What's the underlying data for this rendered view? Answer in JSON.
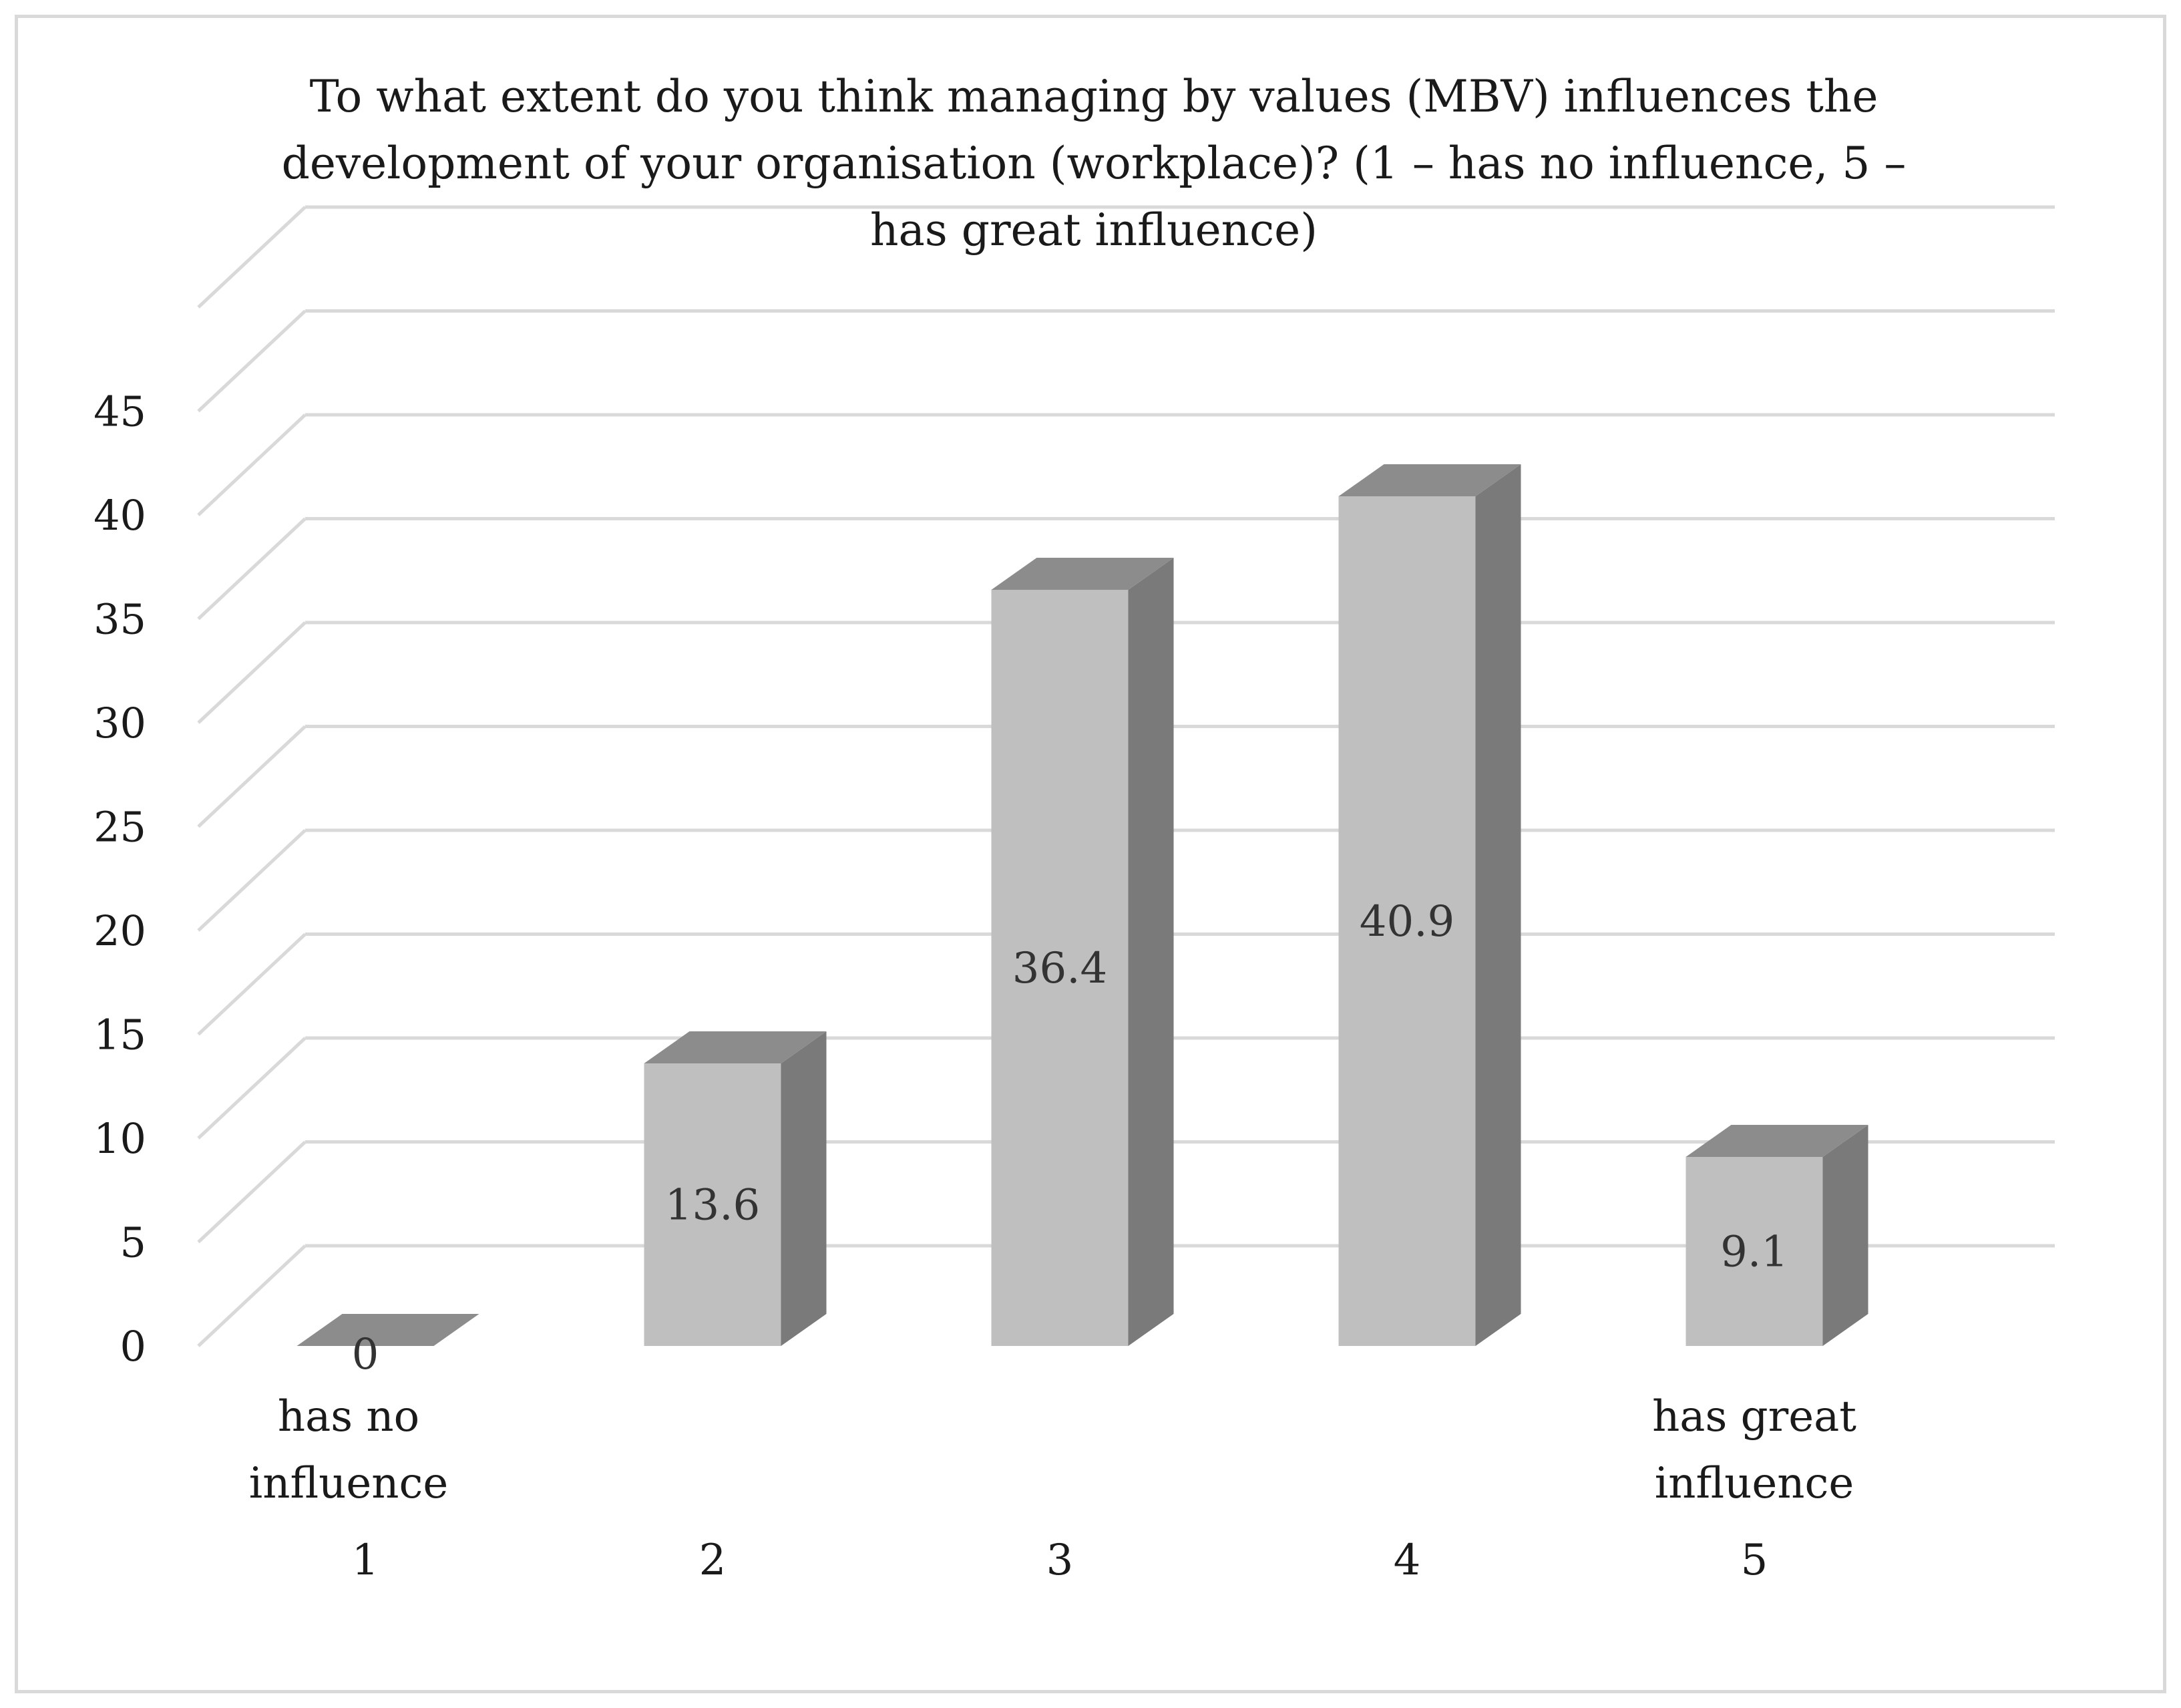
{
  "chart_data": {
    "type": "bar",
    "title_lines": [
      "To what extent do you think managing by values (MBV) influences the",
      "development of your organisation (workplace)? (1 – has no influence, 5 –",
      "has great influence)"
    ],
    "categories": [
      "1",
      "2",
      "3",
      "4",
      "5"
    ],
    "values": [
      0,
      13.6,
      36.4,
      40.9,
      9.1
    ],
    "data_labels": [
      "0",
      "13.6",
      "36.4",
      "40.9",
      "9.1"
    ],
    "category_notes": [
      [
        "has no",
        "influence"
      ],
      [],
      [],
      [],
      [
        "has great",
        "influence"
      ]
    ],
    "yticks": [
      "0",
      "5",
      "10",
      "15",
      "20",
      "25",
      "30",
      "35",
      "40",
      "45"
    ],
    "ylim": [
      0,
      45
    ],
    "grid": true,
    "three_d": true,
    "colors": {
      "bar_front": "#bfbfbf",
      "bar_side": "#7a7a7a",
      "bar_top": "#8c8c8c",
      "grid": "#d9d9d9",
      "frame": "#d9d9d9"
    }
  }
}
